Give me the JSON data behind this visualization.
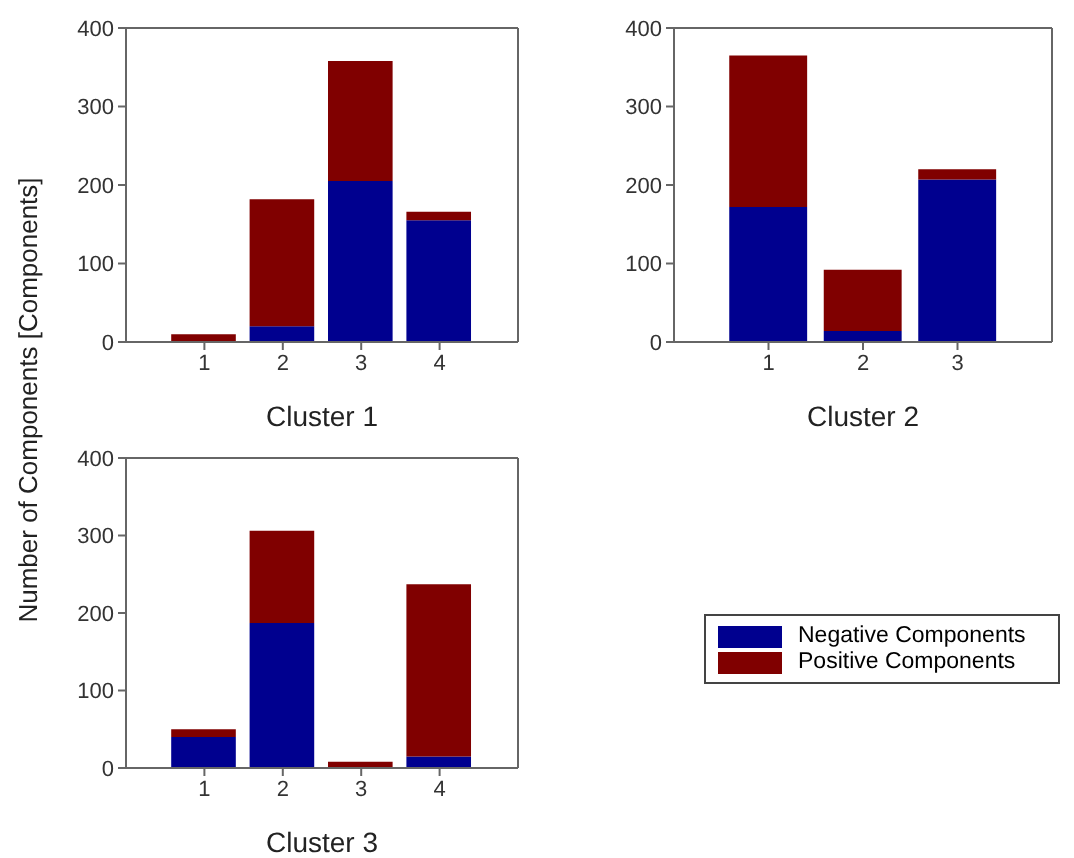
{
  "chart_data": [
    {
      "type": "bar",
      "stacked": true,
      "xlabel": "Cluster 1",
      "ylabel": "Number of Components [Components]",
      "categories": [
        "1",
        "2",
        "3",
        "4"
      ],
      "ylim": [
        0,
        400
      ],
      "yticks": [
        0,
        100,
        200,
        300,
        400
      ],
      "grid": false,
      "legend": false,
      "series": [
        {
          "color": "#00008f",
          "values": [
            0,
            20,
            205,
            155
          ]
        },
        {
          "color": "#800000",
          "values": [
            10,
            162,
            153,
            11
          ]
        }
      ]
    },
    {
      "type": "bar",
      "stacked": true,
      "xlabel": "Cluster 2",
      "categories": [
        "1",
        "2",
        "3"
      ],
      "ylim": [
        0,
        400
      ],
      "yticks": [
        0,
        100,
        200,
        300,
        400
      ],
      "grid": false,
      "legend": false,
      "series": [
        {
          "color": "#00008f",
          "values": [
            172,
            14,
            207
          ]
        },
        {
          "color": "#800000",
          "values": [
            193,
            78,
            13
          ]
        }
      ]
    },
    {
      "type": "bar",
      "stacked": true,
      "xlabel": "Cluster 3",
      "categories": [
        "1",
        "2",
        "3",
        "4"
      ],
      "ylim": [
        0,
        400
      ],
      "yticks": [
        0,
        100,
        200,
        300,
        400
      ],
      "grid": false,
      "legend": "right",
      "series": [
        {
          "name": "Negative Components",
          "color": "#00008f",
          "values": [
            40,
            187,
            0,
            15
          ]
        },
        {
          "name": "Positive Components",
          "color": "#800000",
          "values": [
            10,
            119,
            8,
            222
          ]
        }
      ]
    }
  ]
}
